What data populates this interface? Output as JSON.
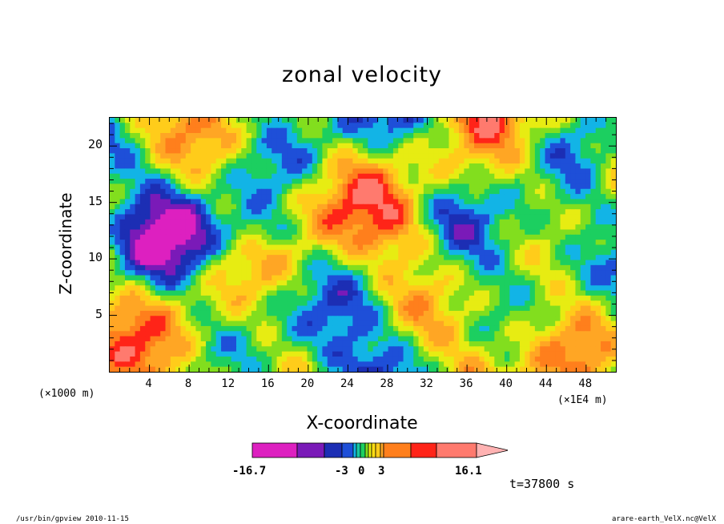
{
  "chart_data": {
    "type": "heatmap",
    "title": "zonal velocity",
    "xlabel": "X-coordinate",
    "ylabel": "Z-coordinate",
    "x_unit_left": "(×1000 m)",
    "x_unit_right": "(×1E4 m)",
    "xticks": [
      "4",
      "8",
      "12",
      "16",
      "20",
      "24",
      "28",
      "32",
      "36",
      "40",
      "44",
      "48"
    ],
    "yticks": [
      "5",
      "10",
      "15",
      "20"
    ],
    "xlim": [
      0,
      51
    ],
    "ylim": [
      0,
      22.5
    ],
    "colorbar": {
      "min": -16.7,
      "max": 16.1,
      "labels": [
        "-16.7",
        "-3",
        "0",
        "3",
        "16.1"
      ],
      "colors": [
        "#dd20c0",
        "#7a1ab8",
        "#1c2eb4",
        "#1e4fd8",
        "#12b4e6",
        "#1ccf60",
        "#82de1e",
        "#e7ec12",
        "#ffcc1a",
        "#ffa624",
        "#ff7f1c",
        "#ff2418",
        "#ff7a6e",
        "#ffb2b2"
      ]
    },
    "annotation": "t=37800 s"
  },
  "footer": {
    "left": "/usr/bin/gpview   2010-11-15",
    "right": "arare-earth_VelX.nc@VelX"
  }
}
